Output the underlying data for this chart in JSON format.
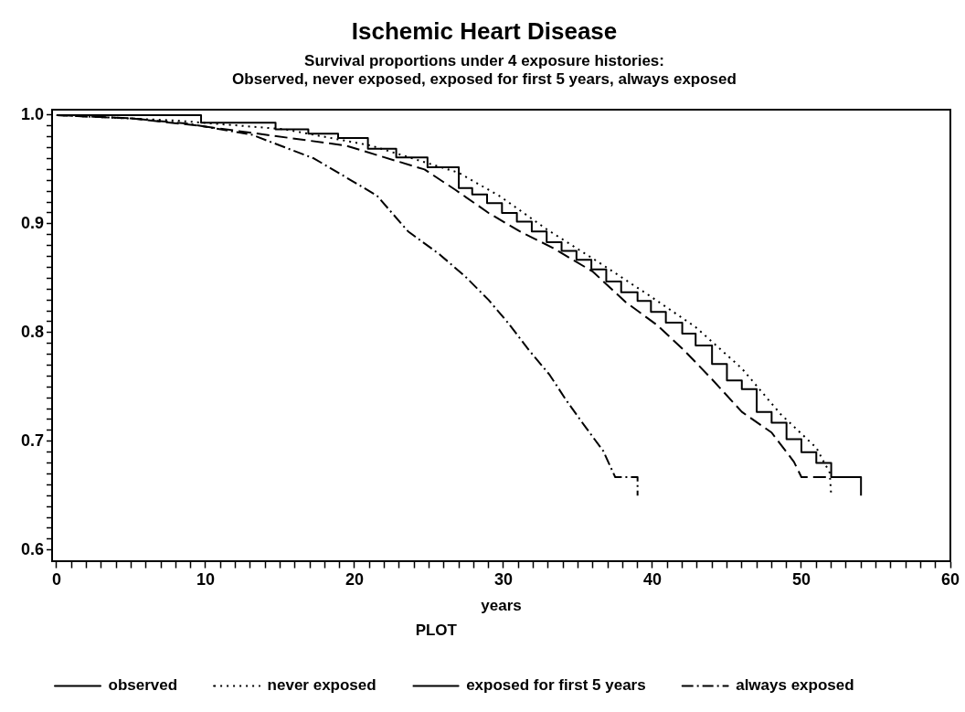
{
  "chart_data": {
    "type": "line",
    "title": "Ischemic Heart Disease",
    "subtitle": "Survival proportions under 4 exposure histories:\nObserved, never exposed, exposed for first 5 years, always exposed",
    "xlabel": "years",
    "legend_title": "PLOT",
    "legend": "bottom",
    "grid": false,
    "marker": "none",
    "xlim": [
      -0.3,
      60
    ],
    "ylim": [
      0.59,
      1.005
    ],
    "xticks": [
      0,
      {
        "value": 1,
        "label": null
      },
      {
        "value": 2,
        "label": null
      },
      {
        "value": 3,
        "label": null
      },
      {
        "value": 4,
        "label": null
      },
      {
        "value": 5,
        "label": null
      },
      {
        "value": 6,
        "label": null
      },
      {
        "value": 7,
        "label": null
      },
      {
        "value": 8,
        "label": null
      },
      {
        "value": 9,
        "label": null
      },
      10,
      {
        "value": 11,
        "label": null
      },
      {
        "value": 12,
        "label": null
      },
      {
        "value": 13,
        "label": null
      },
      {
        "value": 14,
        "label": null
      },
      {
        "value": 15,
        "label": null
      },
      {
        "value": 16,
        "label": null
      },
      {
        "value": 17,
        "label": null
      },
      {
        "value": 18,
        "label": null
      },
      {
        "value": 19,
        "label": null
      },
      20,
      {
        "value": 21,
        "label": null
      },
      {
        "value": 22,
        "label": null
      },
      {
        "value": 23,
        "label": null
      },
      {
        "value": 24,
        "label": null
      },
      {
        "value": 25,
        "label": null
      },
      {
        "value": 26,
        "label": null
      },
      {
        "value": 27,
        "label": null
      },
      {
        "value": 28,
        "label": null
      },
      {
        "value": 29,
        "label": null
      },
      30,
      {
        "value": 31,
        "label": null
      },
      {
        "value": 32,
        "label": null
      },
      {
        "value": 33,
        "label": null
      },
      {
        "value": 34,
        "label": null
      },
      {
        "value": 35,
        "label": null
      },
      {
        "value": 36,
        "label": null
      },
      {
        "value": 37,
        "label": null
      },
      {
        "value": 38,
        "label": null
      },
      {
        "value": 39,
        "label": null
      },
      40,
      {
        "value": 41,
        "label": null
      },
      {
        "value": 42,
        "label": null
      },
      {
        "value": 43,
        "label": null
      },
      {
        "value": 44,
        "label": null
      },
      {
        "value": 45,
        "label": null
      },
      {
        "value": 46,
        "label": null
      },
      {
        "value": 47,
        "label": null
      },
      {
        "value": 48,
        "label": null
      },
      {
        "value": 49,
        "label": null
      },
      50,
      {
        "value": 51,
        "label": null
      },
      {
        "value": 52,
        "label": null
      },
      {
        "value": 53,
        "label": null
      },
      {
        "value": 54,
        "label": null
      },
      {
        "value": 55,
        "label": null
      },
      {
        "value": 56,
        "label": null
      },
      {
        "value": 57,
        "label": null
      },
      {
        "value": 58,
        "label": null
      },
      {
        "value": 59,
        "label": null
      },
      60
    ],
    "yticks": [
      {
        "value": 0.6,
        "label": "0.6"
      },
      {
        "value": 0.61,
        "label": null
      },
      {
        "value": 0.62,
        "label": null
      },
      {
        "value": 0.63,
        "label": null
      },
      {
        "value": 0.64,
        "label": null
      },
      {
        "value": 0.65,
        "label": null
      },
      {
        "value": 0.66,
        "label": null
      },
      {
        "value": 0.67,
        "label": null
      },
      {
        "value": 0.68,
        "label": null
      },
      {
        "value": 0.69,
        "label": null
      },
      {
        "value": 0.7,
        "label": "0.7"
      },
      {
        "value": 0.71,
        "label": null
      },
      {
        "value": 0.72,
        "label": null
      },
      {
        "value": 0.73,
        "label": null
      },
      {
        "value": 0.74,
        "label": null
      },
      {
        "value": 0.75,
        "label": null
      },
      {
        "value": 0.76,
        "label": null
      },
      {
        "value": 0.77,
        "label": null
      },
      {
        "value": 0.78,
        "label": null
      },
      {
        "value": 0.79,
        "label": null
      },
      {
        "value": 0.8,
        "label": "0.8"
      },
      {
        "value": 0.81,
        "label": null
      },
      {
        "value": 0.82,
        "label": null
      },
      {
        "value": 0.83,
        "label": null
      },
      {
        "value": 0.84,
        "label": null
      },
      {
        "value": 0.85,
        "label": null
      },
      {
        "value": 0.86,
        "label": null
      },
      {
        "value": 0.87,
        "label": null
      },
      {
        "value": 0.88,
        "label": null
      },
      {
        "value": 0.89,
        "label": null
      },
      {
        "value": 0.9,
        "label": "0.9"
      },
      {
        "value": 0.91,
        "label": null
      },
      {
        "value": 0.92,
        "label": null
      },
      {
        "value": 0.93,
        "label": null
      },
      {
        "value": 0.94,
        "label": null
      },
      {
        "value": 0.95,
        "label": null
      },
      {
        "value": 0.96,
        "label": null
      },
      {
        "value": 0.97,
        "label": null
      },
      {
        "value": 0.98,
        "label": null
      },
      {
        "value": 0.99,
        "label": null
      },
      {
        "value": 1.0,
        "label": "1.0"
      }
    ],
    "series": [
      {
        "name": "observed",
        "type": "step",
        "color": "#000000",
        "line_style": "solid",
        "x": [
          0,
          9.7,
          14.7,
          16.9,
          18.9,
          20.9,
          22.8,
          24.9,
          27,
          27.9,
          28.9,
          29.9,
          30.9,
          31.9,
          32.9,
          33.9,
          34.9,
          35.9,
          36.9,
          37.9,
          39,
          39.9,
          40.9,
          42,
          42.9,
          44,
          45,
          46,
          47,
          48,
          49,
          50,
          51,
          52,
          54
        ],
        "values": [
          1.0,
          0.993,
          0.987,
          0.983,
          0.979,
          0.969,
          0.961,
          0.952,
          0.933,
          0.927,
          0.919,
          0.91,
          0.902,
          0.893,
          0.883,
          0.875,
          0.867,
          0.858,
          0.847,
          0.837,
          0.829,
          0.819,
          0.809,
          0.799,
          0.788,
          0.771,
          0.756,
          0.748,
          0.727,
          0.717,
          0.702,
          0.69,
          0.68,
          0.667,
          0.65
        ]
      },
      {
        "name": "never exposed",
        "type": "line",
        "color": "#000000",
        "line_style": "dotted",
        "x": [
          0,
          8,
          15.3,
          21.1,
          27,
          29.8,
          32.9,
          36.8,
          39.9,
          42.9,
          46,
          48.6,
          51,
          51.9,
          52
        ],
        "values": [
          1.0,
          0.995,
          0.987,
          0.972,
          0.947,
          0.925,
          0.895,
          0.861,
          0.833,
          0.805,
          0.767,
          0.725,
          0.694,
          0.671,
          0.65
        ]
      },
      {
        "name": "exposed for first 5 years",
        "type": "line",
        "color": "#000000",
        "line_style": "dashed",
        "x": [
          0,
          5,
          9.7,
          19.4,
          24.7,
          26.8,
          29,
          31.1,
          33.3,
          36,
          38.2,
          40.3,
          42.1,
          44,
          46,
          48,
          49.5,
          50,
          52
        ],
        "values": [
          1.0,
          0.997,
          0.99,
          0.972,
          0.95,
          0.931,
          0.91,
          0.893,
          0.878,
          0.856,
          0.828,
          0.807,
          0.784,
          0.757,
          0.727,
          0.708,
          0.681,
          0.667,
          0.667
        ]
      },
      {
        "name": "always exposed",
        "type": "line",
        "color": "#000000",
        "line_style": "dashdot",
        "x": [
          0,
          5,
          8.9,
          13.1,
          17.3,
          19.4,
          21.5,
          23.6,
          25.7,
          27.4,
          29,
          30.3,
          31.7,
          33.1,
          34.2,
          35.4,
          36.7,
          37.5,
          39,
          39
        ],
        "values": [
          1.0,
          0.997,
          0.992,
          0.982,
          0.96,
          0.943,
          0.926,
          0.893,
          0.872,
          0.852,
          0.83,
          0.809,
          0.784,
          0.761,
          0.738,
          0.715,
          0.691,
          0.667,
          0.667,
          0.65
        ]
      }
    ]
  }
}
